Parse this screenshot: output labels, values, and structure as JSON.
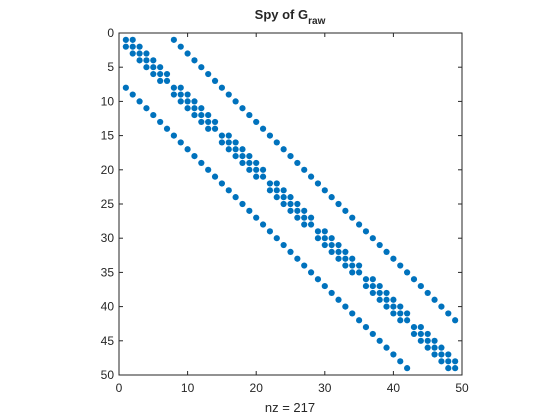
{
  "chart_data": {
    "type": "scatter",
    "title": "Spy of G",
    "title_subscript": "raw",
    "xlabel": "nz = 217",
    "ylabel": "",
    "xlim": [
      0,
      50
    ],
    "ylim": [
      0,
      50
    ],
    "y_axis_reversed": true,
    "xticks": [
      0,
      10,
      20,
      30,
      40,
      50
    ],
    "yticks": [
      0,
      5,
      10,
      15,
      20,
      25,
      30,
      35,
      40,
      45,
      50
    ],
    "grid": false,
    "legend": "none",
    "marker_color": "#0072BD",
    "nz": 217,
    "n": 49,
    "pattern": "Symmetric nonzero pattern (rows/cols 1–49): upper diagonal at column = row + 7 for rows 1–42; lower diagonal at row = column + 7 for columns 1–42; block-diagonal structure of seven 7×7 blocks each carrying the main diagonal plus immediate super/sub-diagonals (column = row ± 1 within the same block).",
    "upper_offset": 7,
    "block_size": 7,
    "num_blocks": 7
  }
}
